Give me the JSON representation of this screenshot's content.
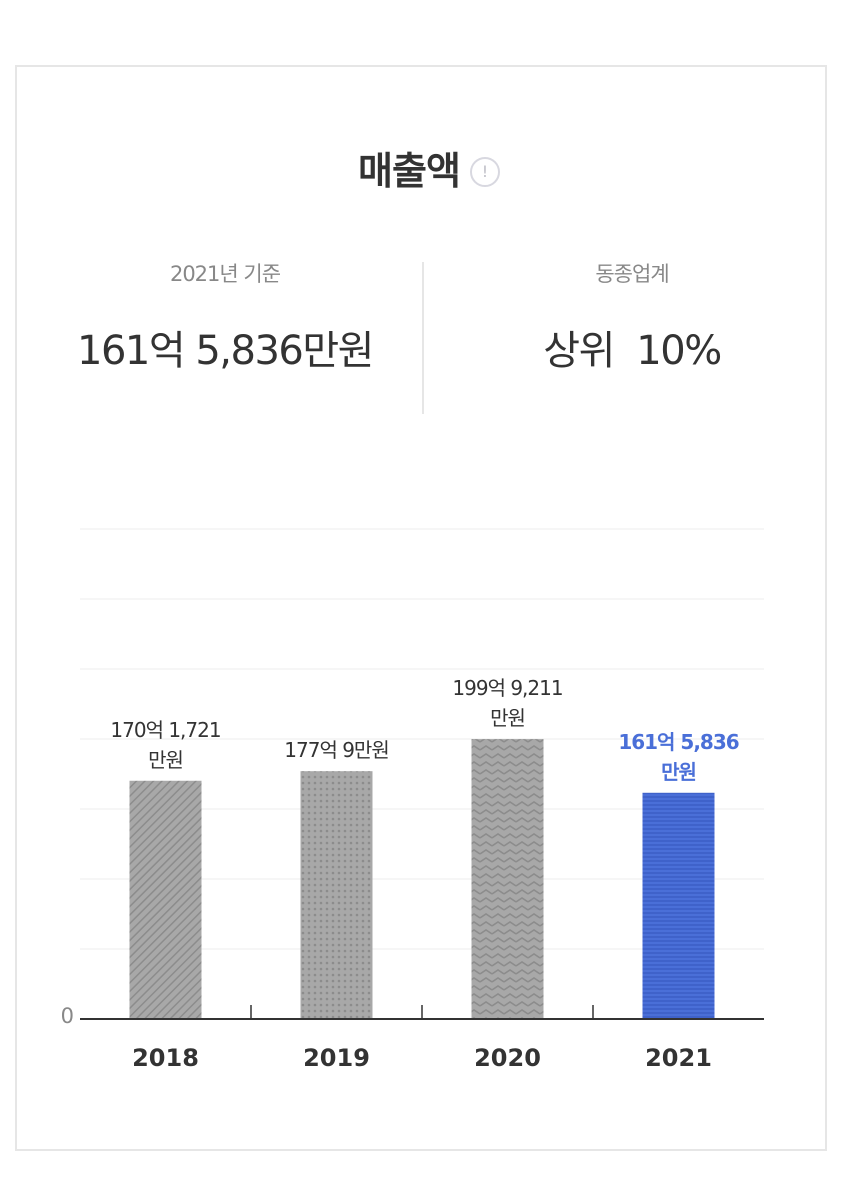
{
  "title": "매출액",
  "stats": {
    "left": {
      "label": "2021년 기준",
      "value": "161억 5,836만원"
    },
    "right": {
      "label": "동종업계",
      "value": "상위  10%"
    }
  },
  "chart_data": {
    "type": "bar",
    "categories": [
      "2018",
      "2019",
      "2020",
      "2021"
    ],
    "values": [
      170.1721,
      177.0009,
      199.9211,
      161.5836
    ],
    "data_labels": [
      [
        "170억 1,721",
        "만원"
      ],
      [
        "177억 9만원"
      ],
      [
        "199억 9,211",
        "만원"
      ],
      [
        "161억 5,836",
        "만원"
      ]
    ],
    "ylim": [
      0,
      350
    ],
    "y_tick_label": "0",
    "grid": true,
    "highlight_index": 3,
    "colors": {
      "bar": "#a8a8a8",
      "pattern": "#8c8c8c",
      "highlight": "#4a6fd8",
      "highlight_pattern": "#3a5cc4",
      "highlight_text": "#4a6fd8"
    },
    "patterns": [
      "diagonal",
      "dots",
      "zigzag",
      "horizontal"
    ]
  }
}
